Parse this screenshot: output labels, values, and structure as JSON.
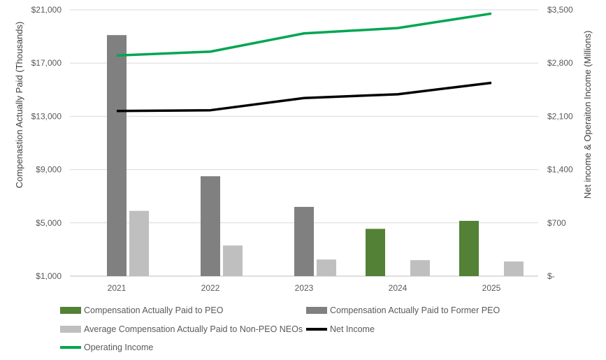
{
  "chart_data": {
    "type": "bar+line",
    "categories": [
      "2021",
      "2022",
      "2023",
      "2024",
      "2025"
    ],
    "y_left": {
      "label": "Compenastion Actually Paid (Thousands)",
      "min": 1000,
      "max": 21000,
      "ticks": [
        1000,
        5000,
        9000,
        13000,
        17000,
        21000
      ],
      "tick_labels": [
        "$1,000",
        "$5,000",
        "$9,000",
        "$13,000",
        "$17,000",
        "$21,000"
      ]
    },
    "y_right": {
      "label": "Net income & Operaiton Income (Millions)",
      "min": 0,
      "max": 3500,
      "ticks": [
        0,
        700,
        1400,
        2100,
        2800,
        3500
      ],
      "tick_labels": [
        "$-",
        "$700",
        "$1,400",
        "$2,100",
        "$2,800",
        "$3,500"
      ]
    },
    "bar_series": [
      {
        "name": "Compensation Actually Paid to PEO",
        "color": "#538135",
        "values": [
          null,
          null,
          null,
          4550,
          5150
        ]
      },
      {
        "name": "Compensation Actually Paid to Former PEO",
        "color": "#808080",
        "values": [
          19100,
          8500,
          6200,
          null,
          null
        ]
      },
      {
        "name": "Average Compensation Actually Paid to Non-PEO NEOs",
        "color": "#bfbfbf",
        "values": [
          5900,
          3300,
          2250,
          2200,
          2100
        ]
      }
    ],
    "line_series": [
      {
        "name": "Net Income",
        "color": "#000000",
        "axis": "right",
        "values": [
          2170,
          2180,
          2340,
          2390,
          2540
        ]
      },
      {
        "name": "Operating Income",
        "color": "#00a651",
        "axis": "right",
        "values": [
          2900,
          2950,
          3190,
          3260,
          3450
        ]
      }
    ],
    "legend": {
      "position": "bottom",
      "items": [
        {
          "label": "Compensation Actually Paid to PEO",
          "kind": "box",
          "color": "#538135"
        },
        {
          "label": "Compensation Actually Paid to Former PEO",
          "kind": "box",
          "color": "#808080"
        },
        {
          "label": "Average Compensation Actually Paid to Non-PEO NEOs",
          "kind": "box",
          "color": "#bfbfbf"
        },
        {
          "label": "Net Income",
          "kind": "line",
          "color": "#000000"
        },
        {
          "label": "Operating Income",
          "kind": "line",
          "color": "#00a651"
        }
      ]
    }
  }
}
